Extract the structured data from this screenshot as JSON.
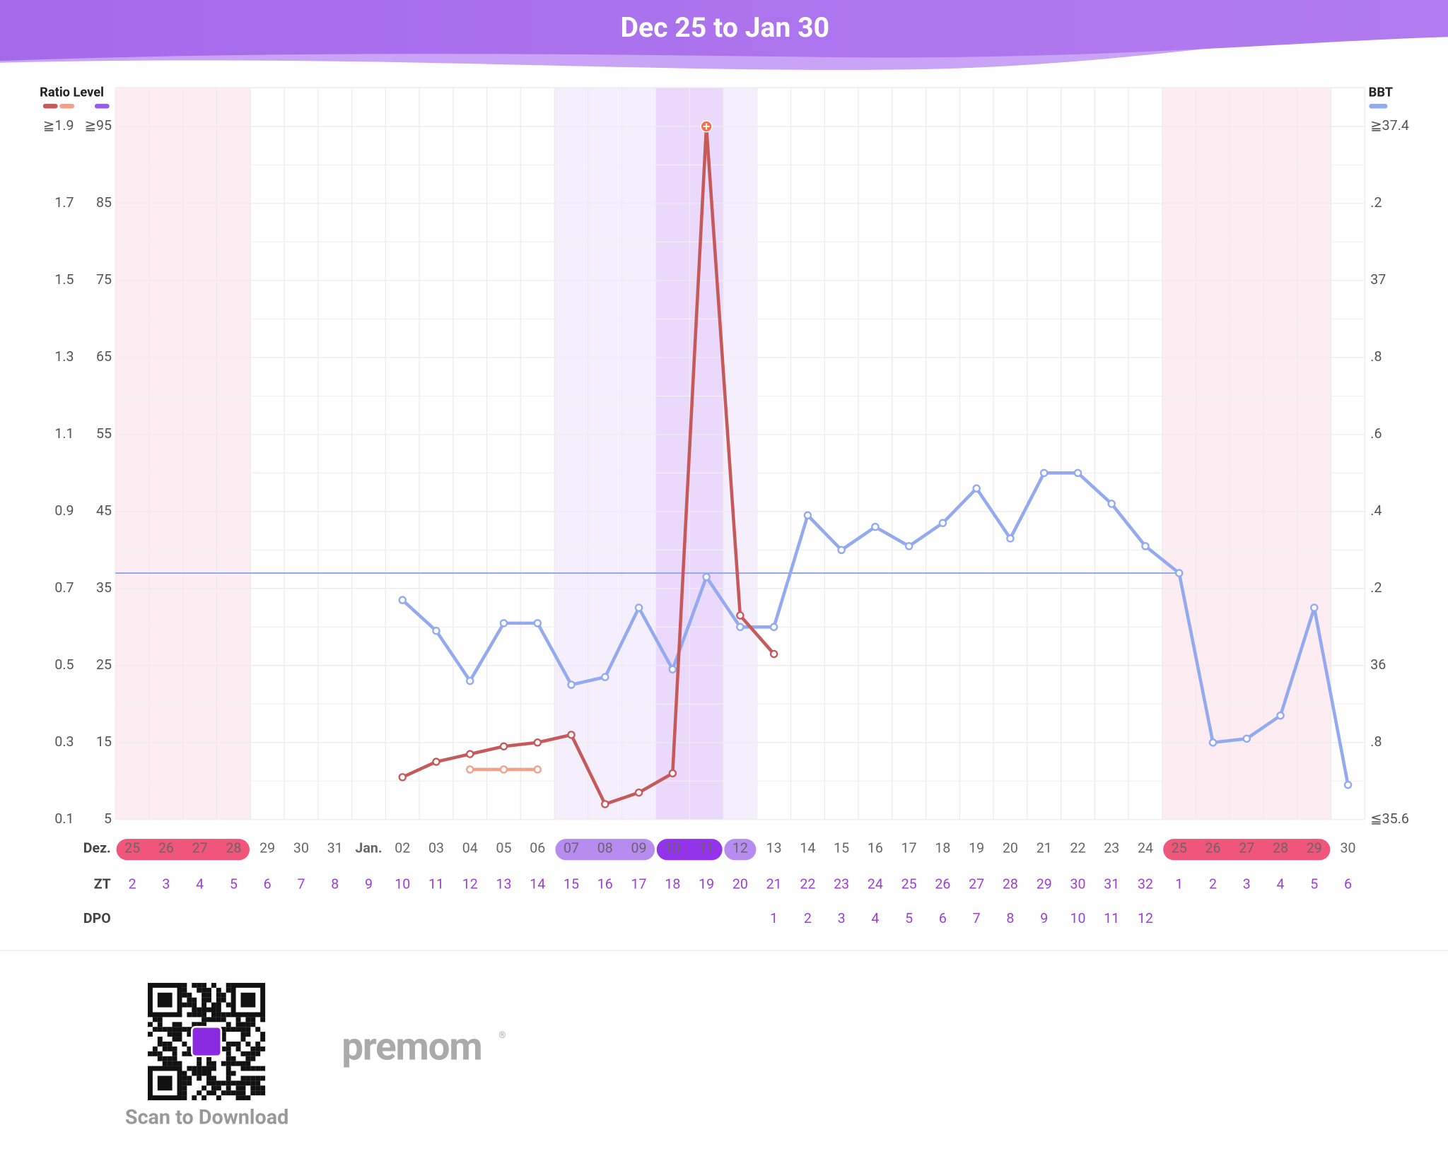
{
  "chart_data": {
    "type": "line",
    "title": "Dec 25  to  Jan 30",
    "y_label": "Ratio Level",
    "y2_label": "BBT",
    "month_label": "Dez.",
    "categories": [
      "25",
      "26",
      "27",
      "28",
      "29",
      "30",
      "31",
      "Jan.",
      "02",
      "03",
      "04",
      "05",
      "06",
      "07",
      "08",
      "09",
      "10",
      "11",
      "12",
      "13",
      "14",
      "15",
      "16",
      "17",
      "18",
      "19",
      "20",
      "21",
      "22",
      "23",
      "24",
      "25",
      "26",
      "27",
      "28",
      "29",
      "30"
    ],
    "zt_label": "ZT",
    "zt": [
      2,
      3,
      4,
      5,
      6,
      7,
      8,
      9,
      10,
      11,
      12,
      13,
      14,
      15,
      16,
      17,
      18,
      19,
      20,
      21,
      22,
      23,
      24,
      25,
      26,
      27,
      28,
      29,
      30,
      31,
      32,
      1,
      2,
      3,
      4,
      5,
      6
    ],
    "dpo_label": "DPO",
    "dpo": [
      null,
      null,
      null,
      null,
      null,
      null,
      null,
      null,
      null,
      null,
      null,
      null,
      null,
      null,
      null,
      null,
      null,
      null,
      null,
      1,
      2,
      3,
      4,
      5,
      6,
      7,
      8,
      9,
      10,
      11,
      12,
      null,
      null,
      null,
      null,
      null,
      null
    ],
    "day_state": [
      "period",
      "period",
      "period",
      "period",
      null,
      null,
      null,
      null,
      null,
      null,
      null,
      null,
      null,
      "fertile",
      "fertile",
      "fertile",
      "peak",
      "peak",
      "fertile",
      null,
      null,
      null,
      null,
      null,
      null,
      null,
      null,
      null,
      null,
      null,
      null,
      "period",
      "period",
      "period",
      "period",
      "period",
      null
    ],
    "state_colors": {
      "period": {
        "band": "#fdecf1",
        "pill": "#f0557a"
      },
      "fertile": {
        "band": "#f5effd",
        "pill": "#b68cf0"
      },
      "peak": {
        "band": "#ead9fb",
        "pill": "#9333ea"
      }
    },
    "ylim": [
      0.1,
      1.9
    ],
    "yticks": [
      {
        "value": 1.9,
        "label": "≧1.9"
      },
      1.7,
      1.5,
      1.3,
      1.1,
      0.9,
      0.7,
      0.5,
      0.3,
      0.1
    ],
    "level_lim": [
      5,
      95
    ],
    "level_ticks": [
      {
        "value": 95,
        "label": "≧95"
      },
      85,
      75,
      65,
      55,
      45,
      35,
      25,
      15,
      5
    ],
    "y2lim": [
      35.6,
      37.4
    ],
    "y2ticks": [
      {
        "value": 37.4,
        "label": "≧37.4"
      },
      {
        "value": 37.2,
        "label": ".2"
      },
      37,
      {
        "value": 36.8,
        "label": ".8"
      },
      {
        "value": 36.6,
        "label": ".6"
      },
      {
        "value": 36.4,
        "label": ".4"
      },
      {
        "value": 36.2,
        "label": ".2"
      },
      36,
      {
        "value": 35.8,
        "label": ".8"
      },
      {
        "value": 35.6,
        "label": "≦35.6"
      }
    ],
    "left_legend": [
      "#c65a5a",
      "#f4a08a",
      "#9b59f0"
    ],
    "right_legend": "#93a9f0",
    "grid": true,
    "coverline": 36.24,
    "series": [
      {
        "color": "#c65a5a",
        "values": [
          null,
          null,
          null,
          null,
          null,
          null,
          null,
          null,
          0.21,
          0.25,
          0.27,
          0.29,
          0.3,
          0.32,
          0.14,
          0.17,
          0.22,
          1.9,
          0.63,
          0.53,
          null,
          null,
          null,
          null,
          null,
          null,
          null,
          null,
          null,
          null,
          null,
          null,
          null,
          null,
          null,
          null,
          null
        ]
      },
      {
        "color": "#f4a08a",
        "values": [
          null,
          null,
          null,
          null,
          null,
          null,
          null,
          null,
          null,
          null,
          0.23,
          0.23,
          0.23,
          null,
          null,
          null,
          null,
          null,
          null,
          null,
          null,
          null,
          null,
          null,
          null,
          null,
          null,
          null,
          null,
          null,
          null,
          null,
          null,
          null,
          null,
          null,
          null
        ]
      },
      {
        "color": "#93a9f0",
        "axis": "y2",
        "values": [
          null,
          null,
          null,
          null,
          null,
          null,
          null,
          null,
          36.17,
          36.09,
          35.96,
          36.11,
          36.11,
          35.95,
          35.97,
          36.15,
          35.99,
          36.23,
          36.1,
          36.1,
          36.39,
          36.3,
          36.36,
          36.31,
          36.37,
          36.46,
          36.33,
          36.5,
          36.5,
          36.42,
          36.31,
          36.24,
          35.8,
          35.81,
          35.87,
          36.15,
          35.69
        ]
      }
    ]
  },
  "footer": {
    "scan_text": "Scan to Download",
    "brand": "premom",
    "brand_mark": "®"
  }
}
